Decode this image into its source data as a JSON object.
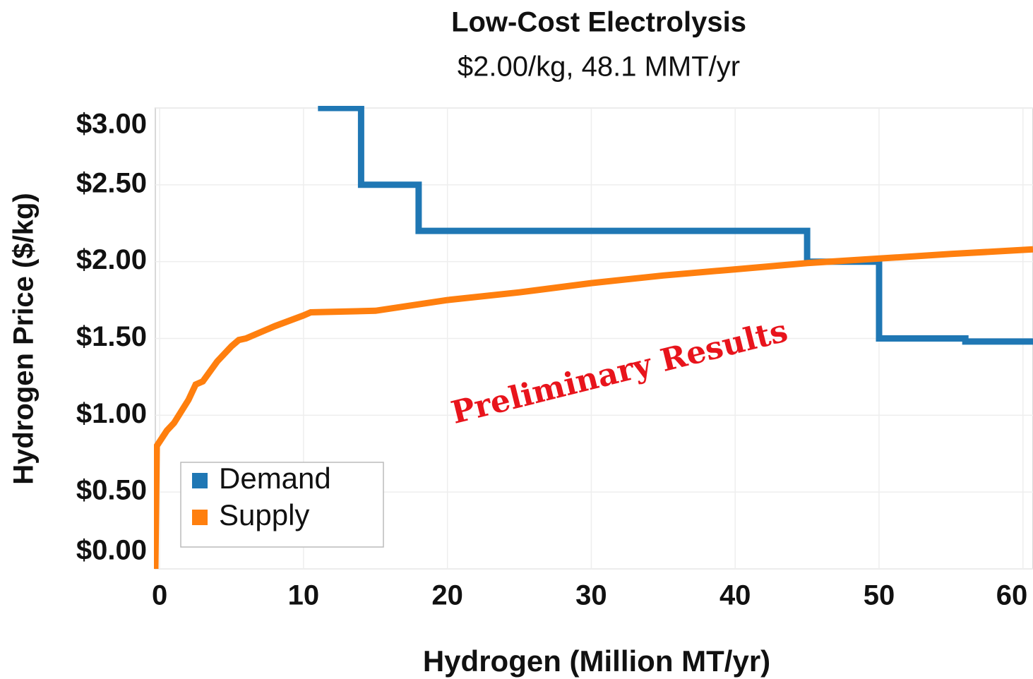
{
  "chart_data": {
    "type": "line",
    "title": "Low-Cost Electrolysis",
    "subtitle": "$2.00/kg,  48.1 MMT/yr",
    "x_label": "Hydrogen (Million MT/yr)",
    "y_label": "Hydrogen Price ($/kg)",
    "annotation": "Preliminary Results",
    "xlim": [
      -0.3,
      60.7
    ],
    "xticks": [
      0,
      10,
      20,
      30,
      40,
      50,
      60
    ],
    "ylim": [
      0,
      3.0
    ],
    "yticks": [
      {
        "value": 0,
        "label": "$0.00"
      },
      {
        "value": 0.5,
        "label": "$0.50"
      },
      {
        "value": 1,
        "label": "$1.00"
      },
      {
        "value": 1.5,
        "label": "$1.50"
      },
      {
        "value": 2,
        "label": "$2.00"
      },
      {
        "value": 2.5,
        "label": "$2.50"
      },
      {
        "value": 3,
        "label": "$3.00"
      }
    ],
    "grid": true,
    "legend": "lower left",
    "series": [
      {
        "name": "Demand",
        "color": "#1f77b4",
        "x": [
          11,
          14,
          14,
          18,
          18,
          45,
          45,
          50,
          50,
          56,
          56,
          60.7
        ],
        "values": [
          3.0,
          3.0,
          2.5,
          2.5,
          2.2,
          2.2,
          2.0,
          2.0,
          1.5,
          1.5,
          1.48,
          1.48
        ]
      },
      {
        "name": "Supply",
        "color": "#ff7f0e",
        "x": [
          -0.3,
          -0.2,
          0.5,
          1,
          2,
          2.5,
          3,
          4,
          5,
          5.5,
          6,
          8,
          10,
          10.5,
          15,
          20,
          25,
          30,
          35,
          40,
          45,
          50,
          55,
          60.7
        ],
        "values": [
          0,
          0.8,
          0.9,
          0.95,
          1.1,
          1.2,
          1.22,
          1.35,
          1.45,
          1.49,
          1.5,
          1.58,
          1.65,
          1.67,
          1.68,
          1.75,
          1.8,
          1.86,
          1.91,
          1.95,
          1.99,
          2.02,
          2.05,
          2.08
        ]
      }
    ]
  }
}
